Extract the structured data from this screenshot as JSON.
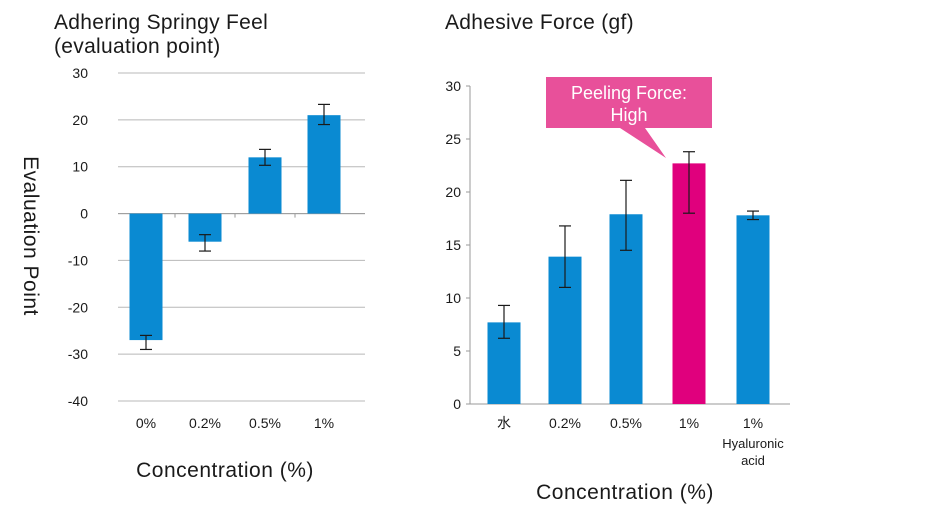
{
  "chart_data": [
    {
      "type": "bar",
      "title": "Adhering Springy Feel\n(evaluation point)",
      "title_lines": [
        "Adhering Springy Feel",
        "(evaluation point)"
      ],
      "xlabel": "Concentration (%)",
      "ylabel": "Evaluation Point",
      "categories": [
        "0%",
        "0.2%",
        "0.5%",
        "1%"
      ],
      "values": [
        -27,
        -6,
        12,
        21
      ],
      "error_low": [
        -29,
        -8,
        10.3,
        19
      ],
      "error_high": [
        -26,
        -4.5,
        13.7,
        23.3
      ],
      "ylim": [
        -40,
        30
      ],
      "yticks": [
        30,
        20,
        10,
        0,
        -10,
        -20,
        -30,
        -40
      ],
      "grid": true,
      "bar_color": "#0a8ad2"
    },
    {
      "type": "bar",
      "title": "Adhesive Force (gf)",
      "xlabel": "Concentration (%)",
      "ylabel": "",
      "categories": [
        "水",
        "0.2%",
        "0.5%",
        "1%",
        "1%"
      ],
      "category_sublabels": [
        "",
        "",
        "",
        "",
        "Hyaluronic acid"
      ],
      "category_sublabel_lines": [
        [],
        [],
        [],
        [],
        [
          "Hyaluronic",
          "acid"
        ]
      ],
      "values": [
        7.7,
        13.9,
        17.9,
        22.7,
        17.8
      ],
      "error_low": [
        6.2,
        11,
        14.5,
        18,
        17.4
      ],
      "error_high": [
        9.3,
        16.8,
        21.1,
        23.8,
        18.2
      ],
      "bar_colors": [
        "#0a8ad2",
        "#0a8ad2",
        "#0a8ad2",
        "#e0007d",
        "#0a8ad2"
      ],
      "ylim": [
        0,
        30
      ],
      "yticks": [
        30,
        25,
        20,
        15,
        10,
        5,
        0
      ],
      "grid": false,
      "annotation": {
        "lines": [
          "Peeling Force:",
          "High"
        ],
        "color": "#e8509a",
        "target_index": 3
      }
    }
  ]
}
